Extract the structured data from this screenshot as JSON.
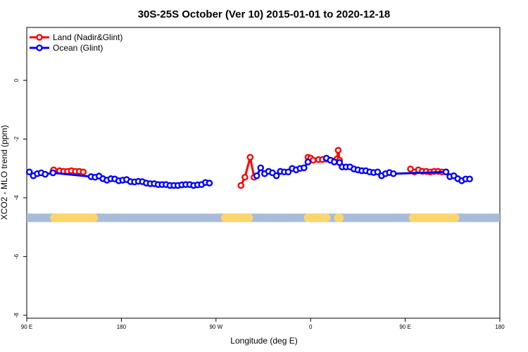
{
  "chart_data": {
    "type": "line",
    "title": "30S-25S October (Ver 10)   2015-01-01 to 2020-12-18",
    "xlabel": "Longitude (deg E)",
    "ylabel": "XCO2 - MLO trend (ppm)",
    "xlim": [
      90,
      450
    ],
    "ylim": [
      -8.1,
      1.8
    ],
    "x_ticks": [
      {
        "value": 90,
        "label": "90 E"
      },
      {
        "value": 162,
        "label": "180"
      },
      {
        "value": 234,
        "label": "90 W"
      },
      {
        "value": 306,
        "label": "0"
      },
      {
        "value": 378,
        "label": "90 E"
      },
      {
        "value": 450,
        "label": "180"
      }
    ],
    "y_ticks": [
      0,
      -2,
      -4,
      -6,
      -8
    ],
    "grid": false,
    "legend_position": "top-left",
    "land_bar": {
      "y": -4.68,
      "ocean_color": "#a7bcd8",
      "land_color": "#fad66c",
      "land_segments": [
        [
          111,
          141
        ],
        [
          241,
          259
        ],
        [
          304,
          318
        ],
        [
          327,
          328
        ],
        [
          384,
          416
        ]
      ]
    },
    "series": [
      {
        "name": "Land (Nadir&Glint)",
        "color": "#ff0000",
        "segments": [
          [
            [
              110,
              -3.1
            ],
            [
              110.5,
              -3.05
            ],
            [
              115,
              -3.08
            ],
            [
              118,
              -3.1
            ],
            [
              121,
              -3.1
            ],
            [
              124,
              -3.08
            ],
            [
              127,
              -3.1
            ],
            [
              130,
              -3.1
            ],
            [
              133,
              -3.12
            ]
          ],
          [
            [
              253,
              -3.58
            ],
            [
              256,
              -3.3
            ],
            [
              260,
              -2.62
            ],
            [
              263,
              -3.3
            ]
          ],
          [
            [
              304,
              -2.62
            ],
            [
              306,
              -2.65
            ],
            [
              308,
              -2.72
            ],
            [
              312,
              -2.7
            ],
            [
              315,
              -2.7
            ],
            [
              318,
              -2.68
            ],
            [
              326,
              -2.68
            ],
            [
              327,
              -2.38
            ],
            [
              328,
              -2.72
            ]
          ],
          [
            [
              382,
              -3.02
            ],
            [
              385,
              -3.12
            ],
            [
              388,
              -3.05
            ],
            [
              391,
              -3.1
            ],
            [
              394,
              -3.1
            ],
            [
              397,
              -3.12
            ],
            [
              400,
              -3.1
            ],
            [
              403,
              -3.1
            ],
            [
              406,
              -3.12
            ],
            [
              409,
              -3.12
            ]
          ]
        ]
      },
      {
        "name": "Ocean (Glint)",
        "color": "#0000ff",
        "segments": [
          [
            [
              92,
              -3.12
            ],
            [
              95,
              -3.25
            ],
            [
              98,
              -3.18
            ],
            [
              101,
              -3.15
            ],
            [
              104,
              -3.2
            ],
            [
              110,
              -3.15
            ],
            [
              139,
              -3.28
            ],
            [
              142,
              -3.3
            ],
            [
              145,
              -3.26
            ],
            [
              148,
              -3.35
            ],
            [
              151,
              -3.4
            ],
            [
              154,
              -3.35
            ],
            [
              157,
              -3.36
            ],
            [
              160,
              -3.42
            ],
            [
              163,
              -3.4
            ],
            [
              166,
              -3.38
            ],
            [
              169,
              -3.45
            ],
            [
              172,
              -3.46
            ],
            [
              175,
              -3.44
            ],
            [
              178,
              -3.45
            ],
            [
              181,
              -3.5
            ],
            [
              184,
              -3.52
            ],
            [
              187,
              -3.52
            ],
            [
              190,
              -3.55
            ],
            [
              193,
              -3.55
            ],
            [
              196,
              -3.55
            ],
            [
              199,
              -3.58
            ],
            [
              202,
              -3.58
            ],
            [
              205,
              -3.58
            ],
            [
              208,
              -3.56
            ],
            [
              211,
              -3.55
            ],
            [
              214,
              -3.55
            ],
            [
              217,
              -3.58
            ],
            [
              220,
              -3.56
            ],
            [
              223,
              -3.55
            ],
            [
              226,
              -3.48
            ],
            [
              229,
              -3.5
            ]
          ],
          [
            [
              265,
              -3.25
            ],
            [
              268,
              -2.98
            ],
            [
              271,
              -3.18
            ],
            [
              274,
              -3.1
            ],
            [
              277,
              -3.15
            ],
            [
              280,
              -3.25
            ],
            [
              283,
              -3.1
            ],
            [
              286,
              -3.12
            ],
            [
              289,
              -3.12
            ],
            [
              292,
              -3.0
            ],
            [
              295,
              -3.05
            ],
            [
              298,
              -3.0
            ],
            [
              301,
              -2.98
            ],
            [
              304,
              -2.78
            ]
          ],
          [
            [
              318,
              -2.65
            ],
            [
              321,
              -2.72
            ],
            [
              324,
              -2.78
            ],
            [
              328,
              -2.8
            ],
            [
              330,
              -2.95
            ],
            [
              333,
              -2.95
            ],
            [
              336,
              -2.95
            ],
            [
              339,
              -3.02
            ],
            [
              342,
              -3.05
            ],
            [
              345,
              -3.08
            ],
            [
              348,
              -3.08
            ],
            [
              351,
              -3.12
            ],
            [
              354,
              -3.14
            ],
            [
              357,
              -3.12
            ],
            [
              360,
              -3.25
            ],
            [
              363,
              -3.18
            ],
            [
              366,
              -3.14
            ],
            [
              369,
              -3.18
            ],
            [
              409,
              -3.12
            ],
            [
              412,
              -3.28
            ],
            [
              415,
              -3.25
            ],
            [
              418,
              -3.35
            ],
            [
              421,
              -3.42
            ],
            [
              424,
              -3.36
            ],
            [
              427,
              -3.36
            ]
          ]
        ]
      }
    ]
  }
}
